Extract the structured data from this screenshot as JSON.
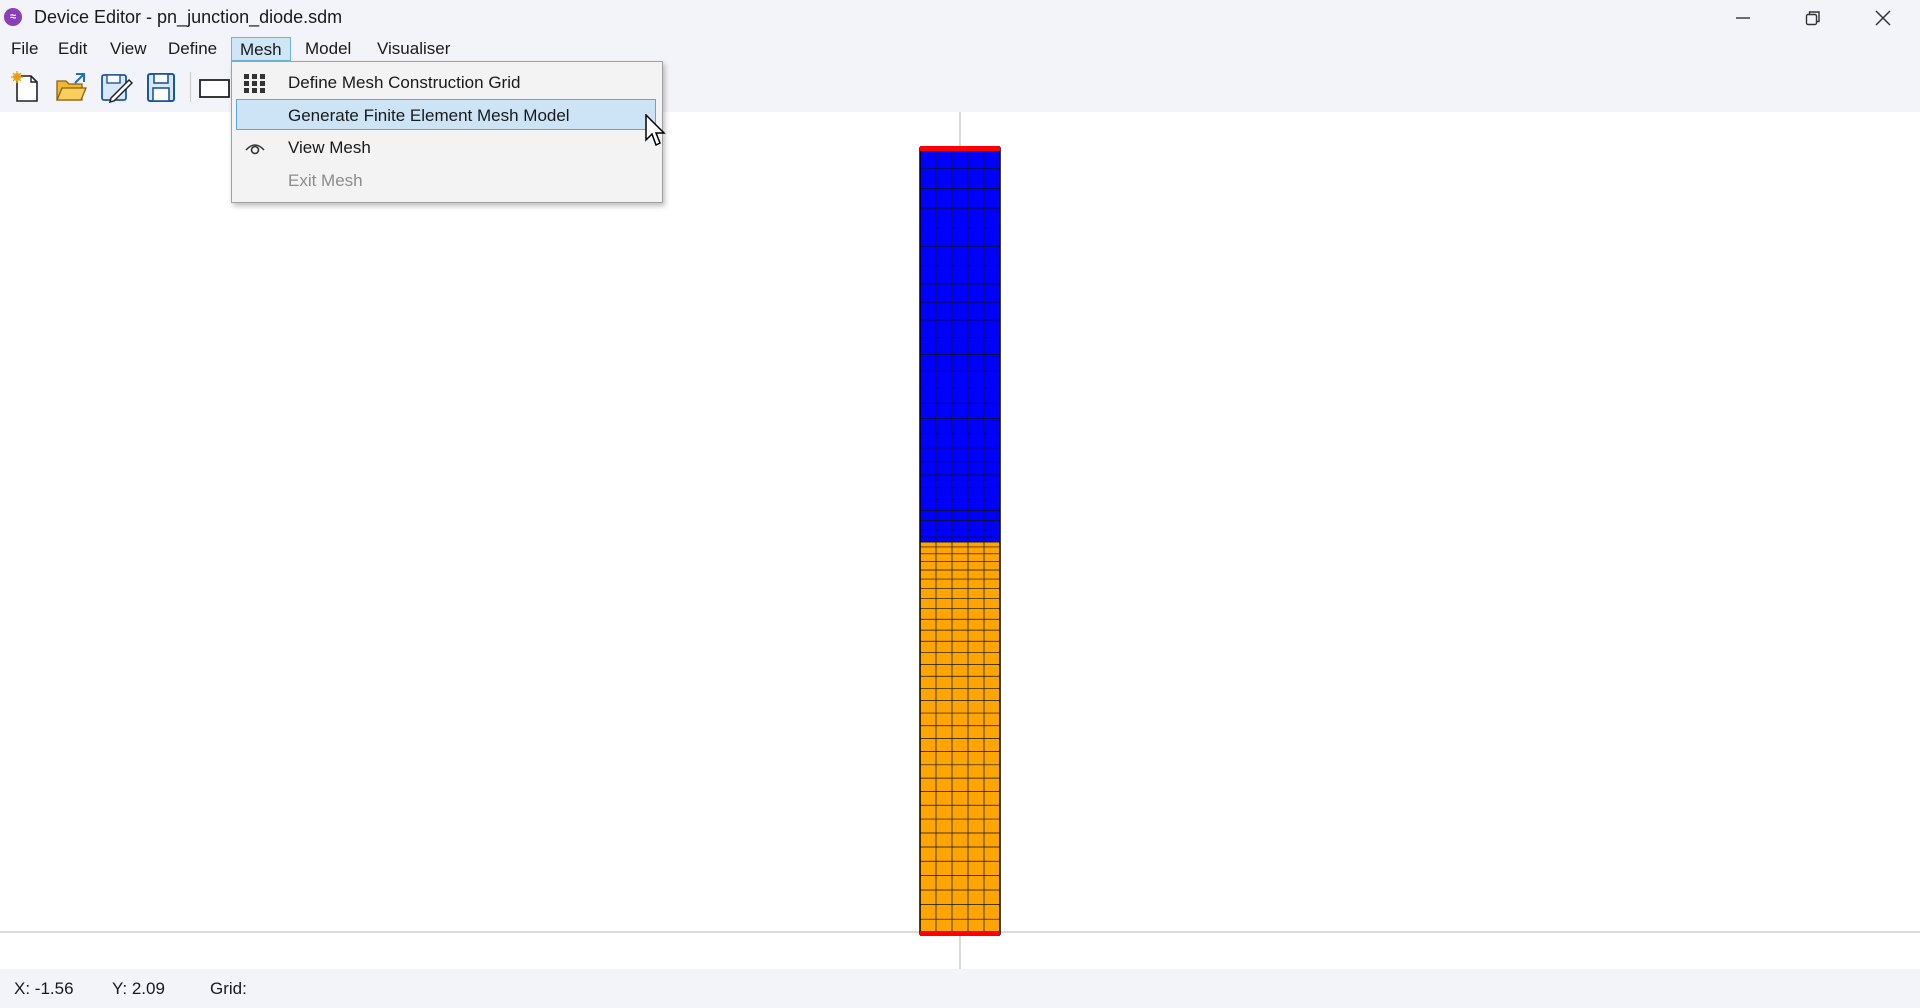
{
  "window": {
    "title": "Device Editor - pn_junction_diode.sdm",
    "app_icon": "waveform-app-icon"
  },
  "menubar": {
    "items": [
      {
        "label": "File"
      },
      {
        "label": "Edit"
      },
      {
        "label": "View"
      },
      {
        "label": "Define"
      },
      {
        "label": "Mesh",
        "active": true
      },
      {
        "label": "Model"
      },
      {
        "label": "Visualiser"
      }
    ]
  },
  "toolbar": {
    "buttons": [
      "new-file-icon",
      "open-folder-icon",
      "edit-save-icon",
      "save-icon",
      "rectangle-icon"
    ]
  },
  "mesh_menu": {
    "items": [
      {
        "label": "Define Mesh Construction Grid",
        "icon": "grid-icon",
        "state": "normal"
      },
      {
        "label": "Generate Finite Element Mesh Model",
        "icon": "",
        "state": "highlighted"
      },
      {
        "label": "View Mesh",
        "icon": "eye-icon",
        "state": "normal"
      },
      {
        "label": "Exit Mesh",
        "icon": "",
        "state": "disabled"
      }
    ]
  },
  "device": {
    "p_region_color": "#0000ff",
    "n_region_color": "#ffa500",
    "contact_color": "#ff0000",
    "p_region_rows": 26,
    "n_region_rows": 33,
    "columns": 5
  },
  "statusbar": {
    "x_label": "X: -1.56",
    "y_label": "Y: 2.09",
    "grid_label": "Grid:"
  }
}
